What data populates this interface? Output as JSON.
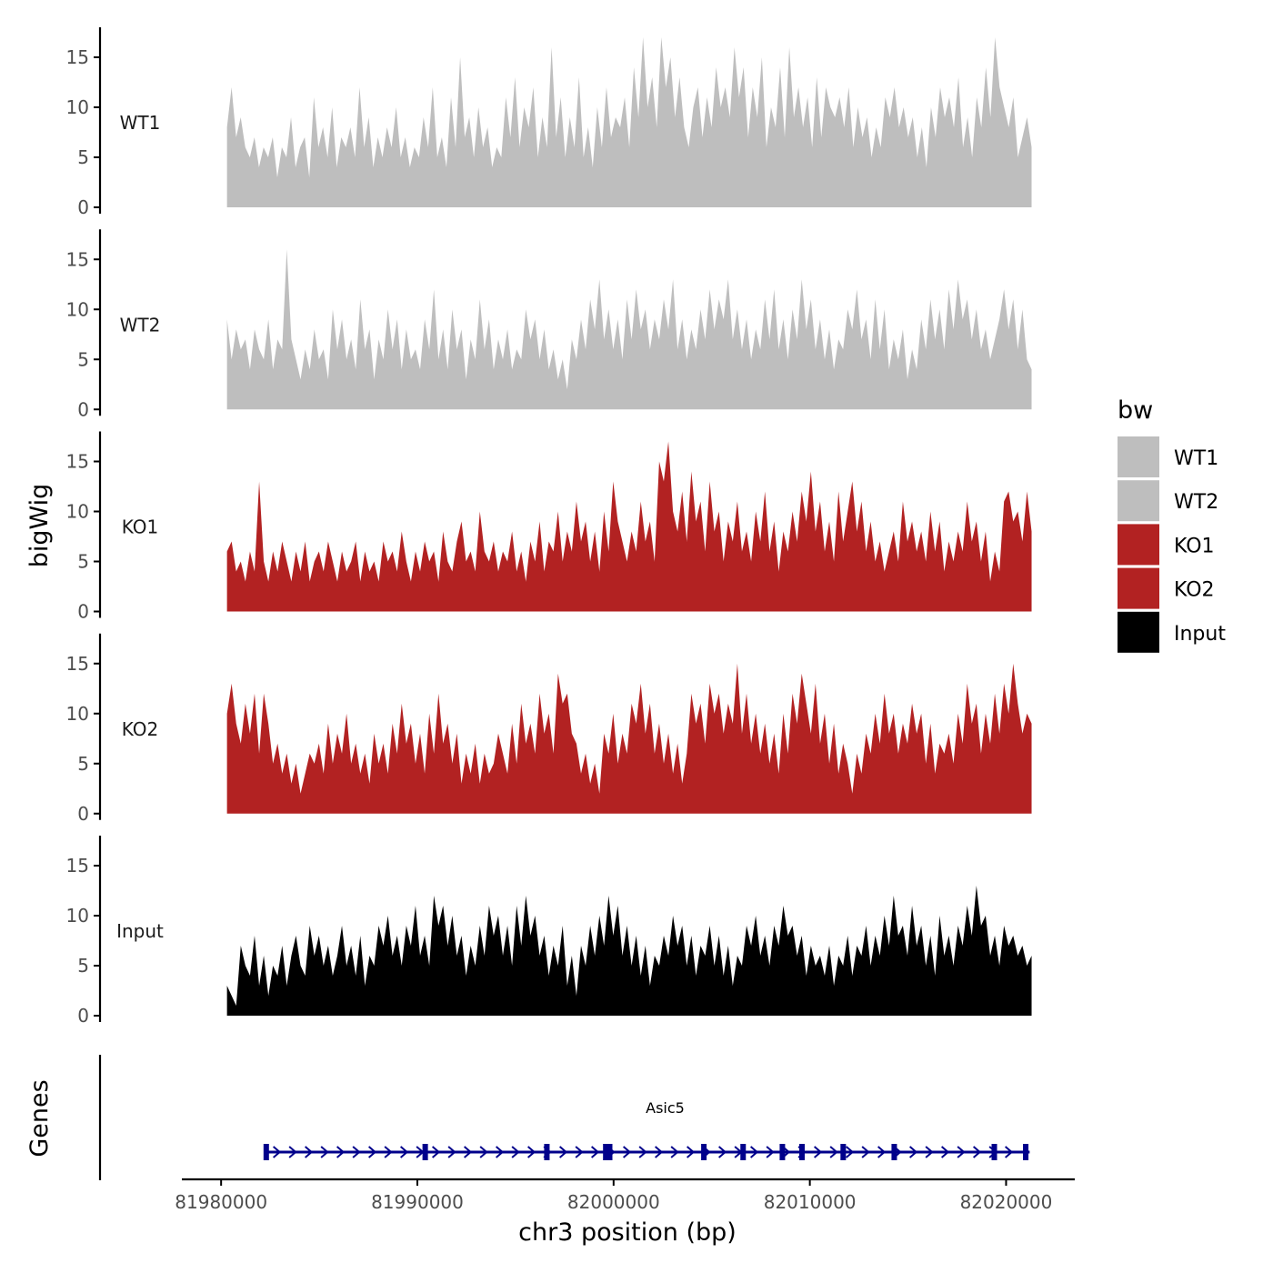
{
  "chart_data": {
    "type": "area",
    "ylabel": "bigWig",
    "xlabel": "chr3 position (bp)",
    "gene_track_label": "Genes",
    "xlim": [
      81978000,
      82023500
    ],
    "data_range": [
      81980300,
      82021300
    ],
    "x_ticks": [
      81980000,
      81990000,
      82000000,
      82010000,
      82020000
    ],
    "x_tick_labels": [
      "81980000",
      "81990000",
      "82000000",
      "82010000",
      "82020000"
    ],
    "ylim": [
      0,
      17
    ],
    "y_ticks": [
      0,
      5,
      10,
      15
    ],
    "y_tick_labels": [
      "0",
      "5",
      "10",
      "15"
    ],
    "legend": {
      "title": "bw",
      "entries": [
        {
          "label": "WT1",
          "color": "#bebebe"
        },
        {
          "label": "WT2",
          "color": "#bebebe"
        },
        {
          "label": "KO1",
          "color": "#b22222"
        },
        {
          "label": "KO2",
          "color": "#b22222"
        },
        {
          "label": "Input",
          "color": "#000000"
        }
      ]
    },
    "series": [
      {
        "name": "WT1",
        "label": "WT1",
        "color": "#bebebe",
        "values": [
          8,
          12,
          7,
          9,
          6,
          5,
          7,
          4,
          6,
          5,
          7,
          3,
          6,
          5,
          9,
          4,
          6,
          7,
          3,
          11,
          6,
          8,
          5,
          10,
          4,
          7,
          6,
          8,
          5,
          12,
          6,
          9,
          4,
          7,
          5,
          8,
          6,
          10,
          5,
          7,
          4,
          6,
          5,
          9,
          6,
          12,
          5,
          7,
          4,
          11,
          6,
          15,
          7,
          9,
          5,
          10,
          6,
          8,
          4,
          6,
          5,
          11,
          7,
          13,
          6,
          10,
          8,
          12,
          5,
          9,
          6,
          16,
          7,
          11,
          5,
          9,
          6,
          13,
          5,
          8,
          4,
          10,
          6,
          12,
          7,
          9,
          8,
          11,
          6,
          14,
          9,
          17,
          10,
          13,
          8,
          17,
          12,
          15,
          9,
          13,
          8,
          6,
          10,
          12,
          7,
          11,
          8,
          14,
          10,
          12,
          9,
          16,
          11,
          14,
          7,
          12,
          9,
          15,
          6,
          10,
          8,
          14,
          7,
          16,
          9,
          12,
          8,
          11,
          6,
          13,
          7,
          12,
          10,
          9,
          11,
          8,
          12,
          6,
          10,
          7,
          9,
          5,
          8,
          6,
          11,
          9,
          12,
          8,
          10,
          7,
          9,
          5,
          8,
          4,
          10,
          7,
          12,
          9,
          11,
          8,
          13,
          6,
          9,
          5,
          11,
          8,
          14,
          9,
          17,
          12,
          10,
          8,
          11,
          5,
          7,
          9,
          6
        ]
      },
      {
        "name": "WT2",
        "label": "WT2",
        "color": "#bebebe",
        "values": [
          9,
          5,
          8,
          6,
          7,
          4,
          8,
          6,
          5,
          9,
          4,
          7,
          6,
          16,
          7,
          5,
          3,
          6,
          4,
          8,
          5,
          6,
          3,
          10,
          6,
          9,
          5,
          7,
          4,
          11,
          6,
          8,
          3,
          7,
          5,
          10,
          6,
          9,
          4,
          8,
          5,
          6,
          4,
          9,
          6,
          12,
          5,
          8,
          4,
          10,
          6,
          8,
          3,
          7,
          5,
          11,
          6,
          9,
          4,
          7,
          5,
          8,
          4,
          6,
          5,
          10,
          7,
          9,
          5,
          8,
          4,
          6,
          3,
          5,
          2,
          7,
          5,
          9,
          6,
          11,
          8,
          13,
          7,
          10,
          6,
          9,
          5,
          11,
          7,
          12,
          8,
          10,
          6,
          9,
          7,
          11,
          8,
          13,
          6,
          9,
          5,
          8,
          6,
          10,
          7,
          12,
          8,
          11,
          9,
          13,
          7,
          10,
          6,
          9,
          5,
          8,
          6,
          11,
          7,
          12,
          6,
          9,
          5,
          10,
          7,
          13,
          8,
          11,
          6,
          9,
          5,
          8,
          4,
          7,
          6,
          10,
          8,
          12,
          7,
          9,
          5,
          11,
          6,
          10,
          4,
          7,
          5,
          8,
          3,
          6,
          4,
          9,
          6,
          11,
          7,
          10,
          6,
          12,
          8,
          13,
          9,
          11,
          7,
          10,
          6,
          8,
          5,
          7,
          9,
          12,
          8,
          11,
          6,
          10,
          5,
          4
        ]
      },
      {
        "name": "KO1",
        "label": "KO1",
        "color": "#b22222",
        "values": [
          6,
          7,
          4,
          5,
          3,
          6,
          4,
          13,
          5,
          3,
          6,
          4,
          7,
          5,
          3,
          6,
          4,
          7,
          3,
          5,
          6,
          4,
          7,
          5,
          3,
          6,
          4,
          5,
          7,
          3,
          6,
          4,
          5,
          3,
          7,
          5,
          6,
          4,
          8,
          5,
          3,
          6,
          4,
          7,
          5,
          6,
          3,
          8,
          5,
          4,
          7,
          9,
          5,
          6,
          4,
          10,
          6,
          5,
          7,
          4,
          6,
          5,
          8,
          4,
          6,
          3,
          7,
          5,
          9,
          4,
          7,
          6,
          10,
          5,
          8,
          6,
          11,
          7,
          9,
          5,
          8,
          4,
          10,
          6,
          13,
          9,
          7,
          5,
          8,
          6,
          11,
          7,
          9,
          5,
          15,
          13,
          17,
          10,
          8,
          12,
          7,
          14,
          9,
          11,
          6,
          13,
          8,
          10,
          5,
          9,
          7,
          11,
          6,
          8,
          5,
          10,
          7,
          12,
          6,
          9,
          4,
          8,
          6,
          10,
          7,
          12,
          9,
          14,
          8,
          11,
          6,
          9,
          5,
          12,
          7,
          10,
          13,
          8,
          11,
          6,
          9,
          5,
          7,
          4,
          6,
          8,
          5,
          11,
          7,
          9,
          6,
          8,
          5,
          10,
          6,
          9,
          4,
          7,
          5,
          8,
          6,
          11,
          7,
          9,
          5,
          8,
          3,
          6,
          4,
          11,
          12,
          9,
          10,
          7,
          12,
          8
        ]
      },
      {
        "name": "KO2",
        "label": "KO2",
        "color": "#b22222",
        "values": [
          10,
          13,
          9,
          7,
          11,
          8,
          12,
          6,
          12,
          9,
          5,
          7,
          4,
          6,
          3,
          5,
          2,
          4,
          6,
          5,
          7,
          4,
          9,
          5,
          8,
          6,
          10,
          5,
          7,
          4,
          6,
          3,
          8,
          5,
          7,
          4,
          9,
          6,
          11,
          7,
          9,
          5,
          8,
          4,
          10,
          6,
          12,
          7,
          9,
          5,
          8,
          3,
          6,
          4,
          7,
          3,
          6,
          4,
          5,
          8,
          6,
          4,
          9,
          5,
          11,
          7,
          9,
          6,
          12,
          8,
          10,
          6,
          14,
          11,
          12,
          8,
          7,
          4,
          6,
          3,
          5,
          2,
          8,
          6,
          10,
          5,
          8,
          6,
          11,
          9,
          13,
          8,
          11,
          6,
          9,
          5,
          8,
          4,
          7,
          3,
          6,
          12,
          9,
          11,
          7,
          13,
          10,
          12,
          8,
          11,
          9,
          15,
          8,
          12,
          7,
          10,
          6,
          9,
          5,
          8,
          4,
          10,
          6,
          12,
          9,
          14,
          11,
          8,
          13,
          7,
          10,
          5,
          9,
          4,
          7,
          5,
          2,
          6,
          4,
          8,
          6,
          10,
          7,
          12,
          8,
          10,
          6,
          9,
          7,
          11,
          8,
          10,
          5,
          9,
          4,
          7,
          6,
          8,
          5,
          10,
          7,
          13,
          9,
          11,
          6,
          10,
          7,
          12,
          8,
          13,
          10,
          15,
          11,
          8,
          10,
          9
        ]
      },
      {
        "name": "Input",
        "label": "Input",
        "color": "#000000",
        "values": [
          3,
          2,
          1,
          7,
          5,
          4,
          8,
          3,
          6,
          2,
          5,
          4,
          7,
          3,
          6,
          8,
          5,
          4,
          9,
          6,
          8,
          5,
          7,
          4,
          6,
          9,
          5,
          7,
          4,
          8,
          3,
          6,
          5,
          9,
          7,
          10,
          6,
          8,
          5,
          9,
          7,
          11,
          6,
          8,
          5,
          12,
          9,
          11,
          7,
          10,
          6,
          8,
          4,
          7,
          5,
          9,
          6,
          11,
          8,
          10,
          6,
          9,
          5,
          11,
          7,
          12,
          8,
          10,
          6,
          8,
          4,
          7,
          5,
          9,
          3,
          6,
          2,
          7,
          5,
          9,
          6,
          10,
          7,
          12,
          8,
          11,
          6,
          9,
          5,
          8,
          4,
          7,
          3,
          6,
          5,
          8,
          6,
          10,
          7,
          9,
          5,
          8,
          4,
          7,
          6,
          9,
          5,
          8,
          4,
          7,
          3,
          6,
          5,
          9,
          7,
          10,
          6,
          8,
          5,
          9,
          7,
          11,
          8,
          9,
          6,
          8,
          4,
          7,
          5,
          6,
          4,
          7,
          3,
          6,
          5,
          8,
          4,
          7,
          6,
          9,
          5,
          8,
          6,
          10,
          7,
          12,
          8,
          9,
          6,
          11,
          7,
          9,
          5,
          8,
          4,
          10,
          6,
          8,
          5,
          9,
          7,
          11,
          8,
          13,
          9,
          10,
          6,
          8,
          5,
          9,
          7,
          8,
          6,
          7,
          5,
          6
        ]
      }
    ],
    "gene": {
      "name": "Asic5",
      "color": "#00008b",
      "start": 81982200,
      "end": 82021200,
      "exons": [
        81982300,
        81990400,
        81996600,
        81999600,
        81999800,
        82004600,
        82006600,
        82008600,
        82009600,
        82011700,
        82014300,
        82019400,
        82021000
      ]
    }
  }
}
